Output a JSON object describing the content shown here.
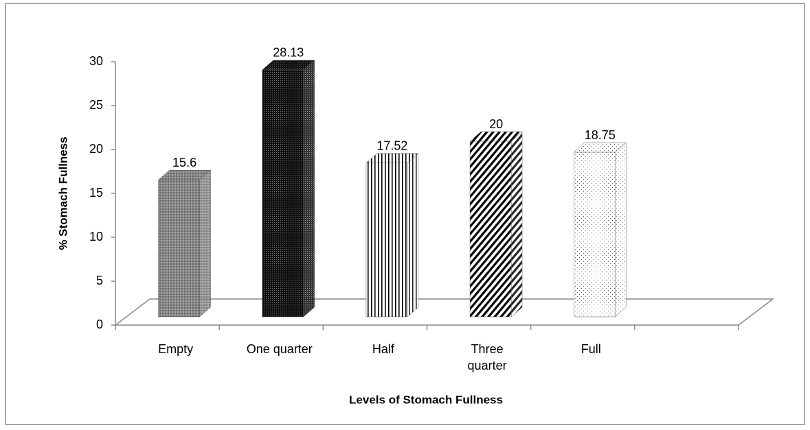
{
  "chart_data": {
    "type": "bar3d",
    "xlabel": "Levels of Stomach Fullness",
    "ylabel": "% Stomach Fullness",
    "categories": [
      "Empty",
      "One quarter",
      "Half",
      "Three quarter",
      "Full"
    ],
    "values": [
      15.6,
      28.13,
      17.52,
      20,
      18.75
    ],
    "ylim": [
      0,
      30
    ],
    "yticks": [
      0,
      5,
      10,
      15,
      20,
      25,
      30
    ]
  }
}
